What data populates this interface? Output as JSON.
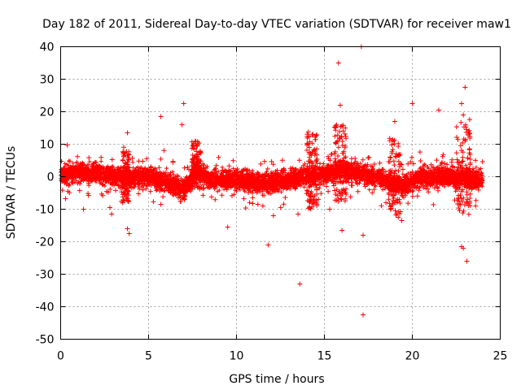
{
  "chart_data": {
    "type": "scatter",
    "title": "Day 182 of 2011, Sidereal Day-to-day VTEC variation (SDTVAR) for receiver maw1",
    "xlabel": "GPS time / hours",
    "ylabel": "SDTVAR / TECUs",
    "xlim": [
      0,
      25
    ],
    "ylim": [
      -50,
      40
    ],
    "xticks": [
      0,
      5,
      10,
      15,
      20,
      25
    ],
    "yticks": [
      -50,
      -40,
      -30,
      -20,
      -10,
      0,
      10,
      20,
      30,
      40
    ],
    "xtick_labels": [
      "0",
      "5",
      "10",
      "15",
      "20",
      "25"
    ],
    "ytick_labels": [
      "-50",
      "-40",
      "-30",
      "-20",
      "-10",
      "0",
      "10",
      "20",
      "30",
      "40"
    ],
    "grid": true,
    "marker": "+",
    "color": "#ff0000",
    "band_trend": [
      {
        "x": 0.0,
        "y": 0.5
      },
      {
        "x": 1.0,
        "y": 1.5
      },
      {
        "x": 2.0,
        "y": 1.0
      },
      {
        "x": 3.0,
        "y": 0.5
      },
      {
        "x": 4.0,
        "y": 0.0
      },
      {
        "x": 5.0,
        "y": 0.0
      },
      {
        "x": 6.0,
        "y": -1.5
      },
      {
        "x": 7.0,
        "y": -4.0
      },
      {
        "x": 7.8,
        "y": 2.0
      },
      {
        "x": 8.5,
        "y": -1.0
      },
      {
        "x": 10.0,
        "y": -1.0
      },
      {
        "x": 11.0,
        "y": -1.5
      },
      {
        "x": 12.0,
        "y": -2.0
      },
      {
        "x": 13.5,
        "y": -0.5
      },
      {
        "x": 15.0,
        "y": 1.0
      },
      {
        "x": 16.0,
        "y": 2.5
      },
      {
        "x": 17.0,
        "y": 1.0
      },
      {
        "x": 18.0,
        "y": 0.0
      },
      {
        "x": 19.0,
        "y": -2.0
      },
      {
        "x": 19.5,
        "y": -3.0
      },
      {
        "x": 20.5,
        "y": 0.0
      },
      {
        "x": 22.0,
        "y": 0.0
      },
      {
        "x": 24.0,
        "y": -1.0
      }
    ],
    "notable_points": [
      {
        "x": 17.1,
        "y": 40
      },
      {
        "x": 15.8,
        "y": 35
      },
      {
        "x": 23.0,
        "y": 27.5
      },
      {
        "x": 7.0,
        "y": 22.5
      },
      {
        "x": 20.0,
        "y": 22.5
      },
      {
        "x": 15.9,
        "y": 22
      },
      {
        "x": 22.8,
        "y": 22.5
      },
      {
        "x": 21.5,
        "y": 20.5
      },
      {
        "x": 5.7,
        "y": 18.5
      },
      {
        "x": 19.0,
        "y": 17.0
      },
      {
        "x": 3.8,
        "y": 13.5
      },
      {
        "x": 22.9,
        "y": 19.0
      },
      {
        "x": 6.9,
        "y": 16.0
      },
      {
        "x": 11.8,
        "y": -21
      },
      {
        "x": 13.6,
        "y": -33
      },
      {
        "x": 17.2,
        "y": -42.5
      },
      {
        "x": 17.2,
        "y": -18
      },
      {
        "x": 16.0,
        "y": -16.5
      },
      {
        "x": 22.8,
        "y": -21.5
      },
      {
        "x": 22.9,
        "y": -22
      },
      {
        "x": 23.1,
        "y": -26
      },
      {
        "x": 9.5,
        "y": -15.5
      },
      {
        "x": 3.8,
        "y": -16
      },
      {
        "x": 3.9,
        "y": -17.5
      },
      {
        "x": 1.3,
        "y": -10
      },
      {
        "x": 2.9,
        "y": -11.5
      },
      {
        "x": 2.8,
        "y": -9.5
      },
      {
        "x": 12.1,
        "y": -12
      },
      {
        "x": 13.5,
        "y": -11.5
      },
      {
        "x": 15.3,
        "y": -10
      },
      {
        "x": 19.4,
        "y": -13.5
      },
      {
        "x": 19.2,
        "y": -12.5
      },
      {
        "x": 5.7,
        "y": -8.5
      },
      {
        "x": 23.6,
        "y": -9
      },
      {
        "x": 11.5,
        "y": -9
      },
      {
        "x": 18.5,
        "y": -8
      }
    ],
    "spike_clusters": [
      {
        "x": 7.7,
        "spread": 0.25,
        "ymin": -4,
        "ymax": 11
      },
      {
        "x": 15.9,
        "spread": 0.35,
        "ymin": -8,
        "ymax": 16
      },
      {
        "x": 19.0,
        "spread": 0.35,
        "ymin": -12,
        "ymax": 12
      },
      {
        "x": 3.7,
        "spread": 0.2,
        "ymin": -8,
        "ymax": 8
      },
      {
        "x": 14.3,
        "spread": 0.3,
        "ymin": -10,
        "ymax": 14
      },
      {
        "x": 22.9,
        "spread": 0.4,
        "ymin": -12,
        "ymax": 18
      }
    ]
  }
}
